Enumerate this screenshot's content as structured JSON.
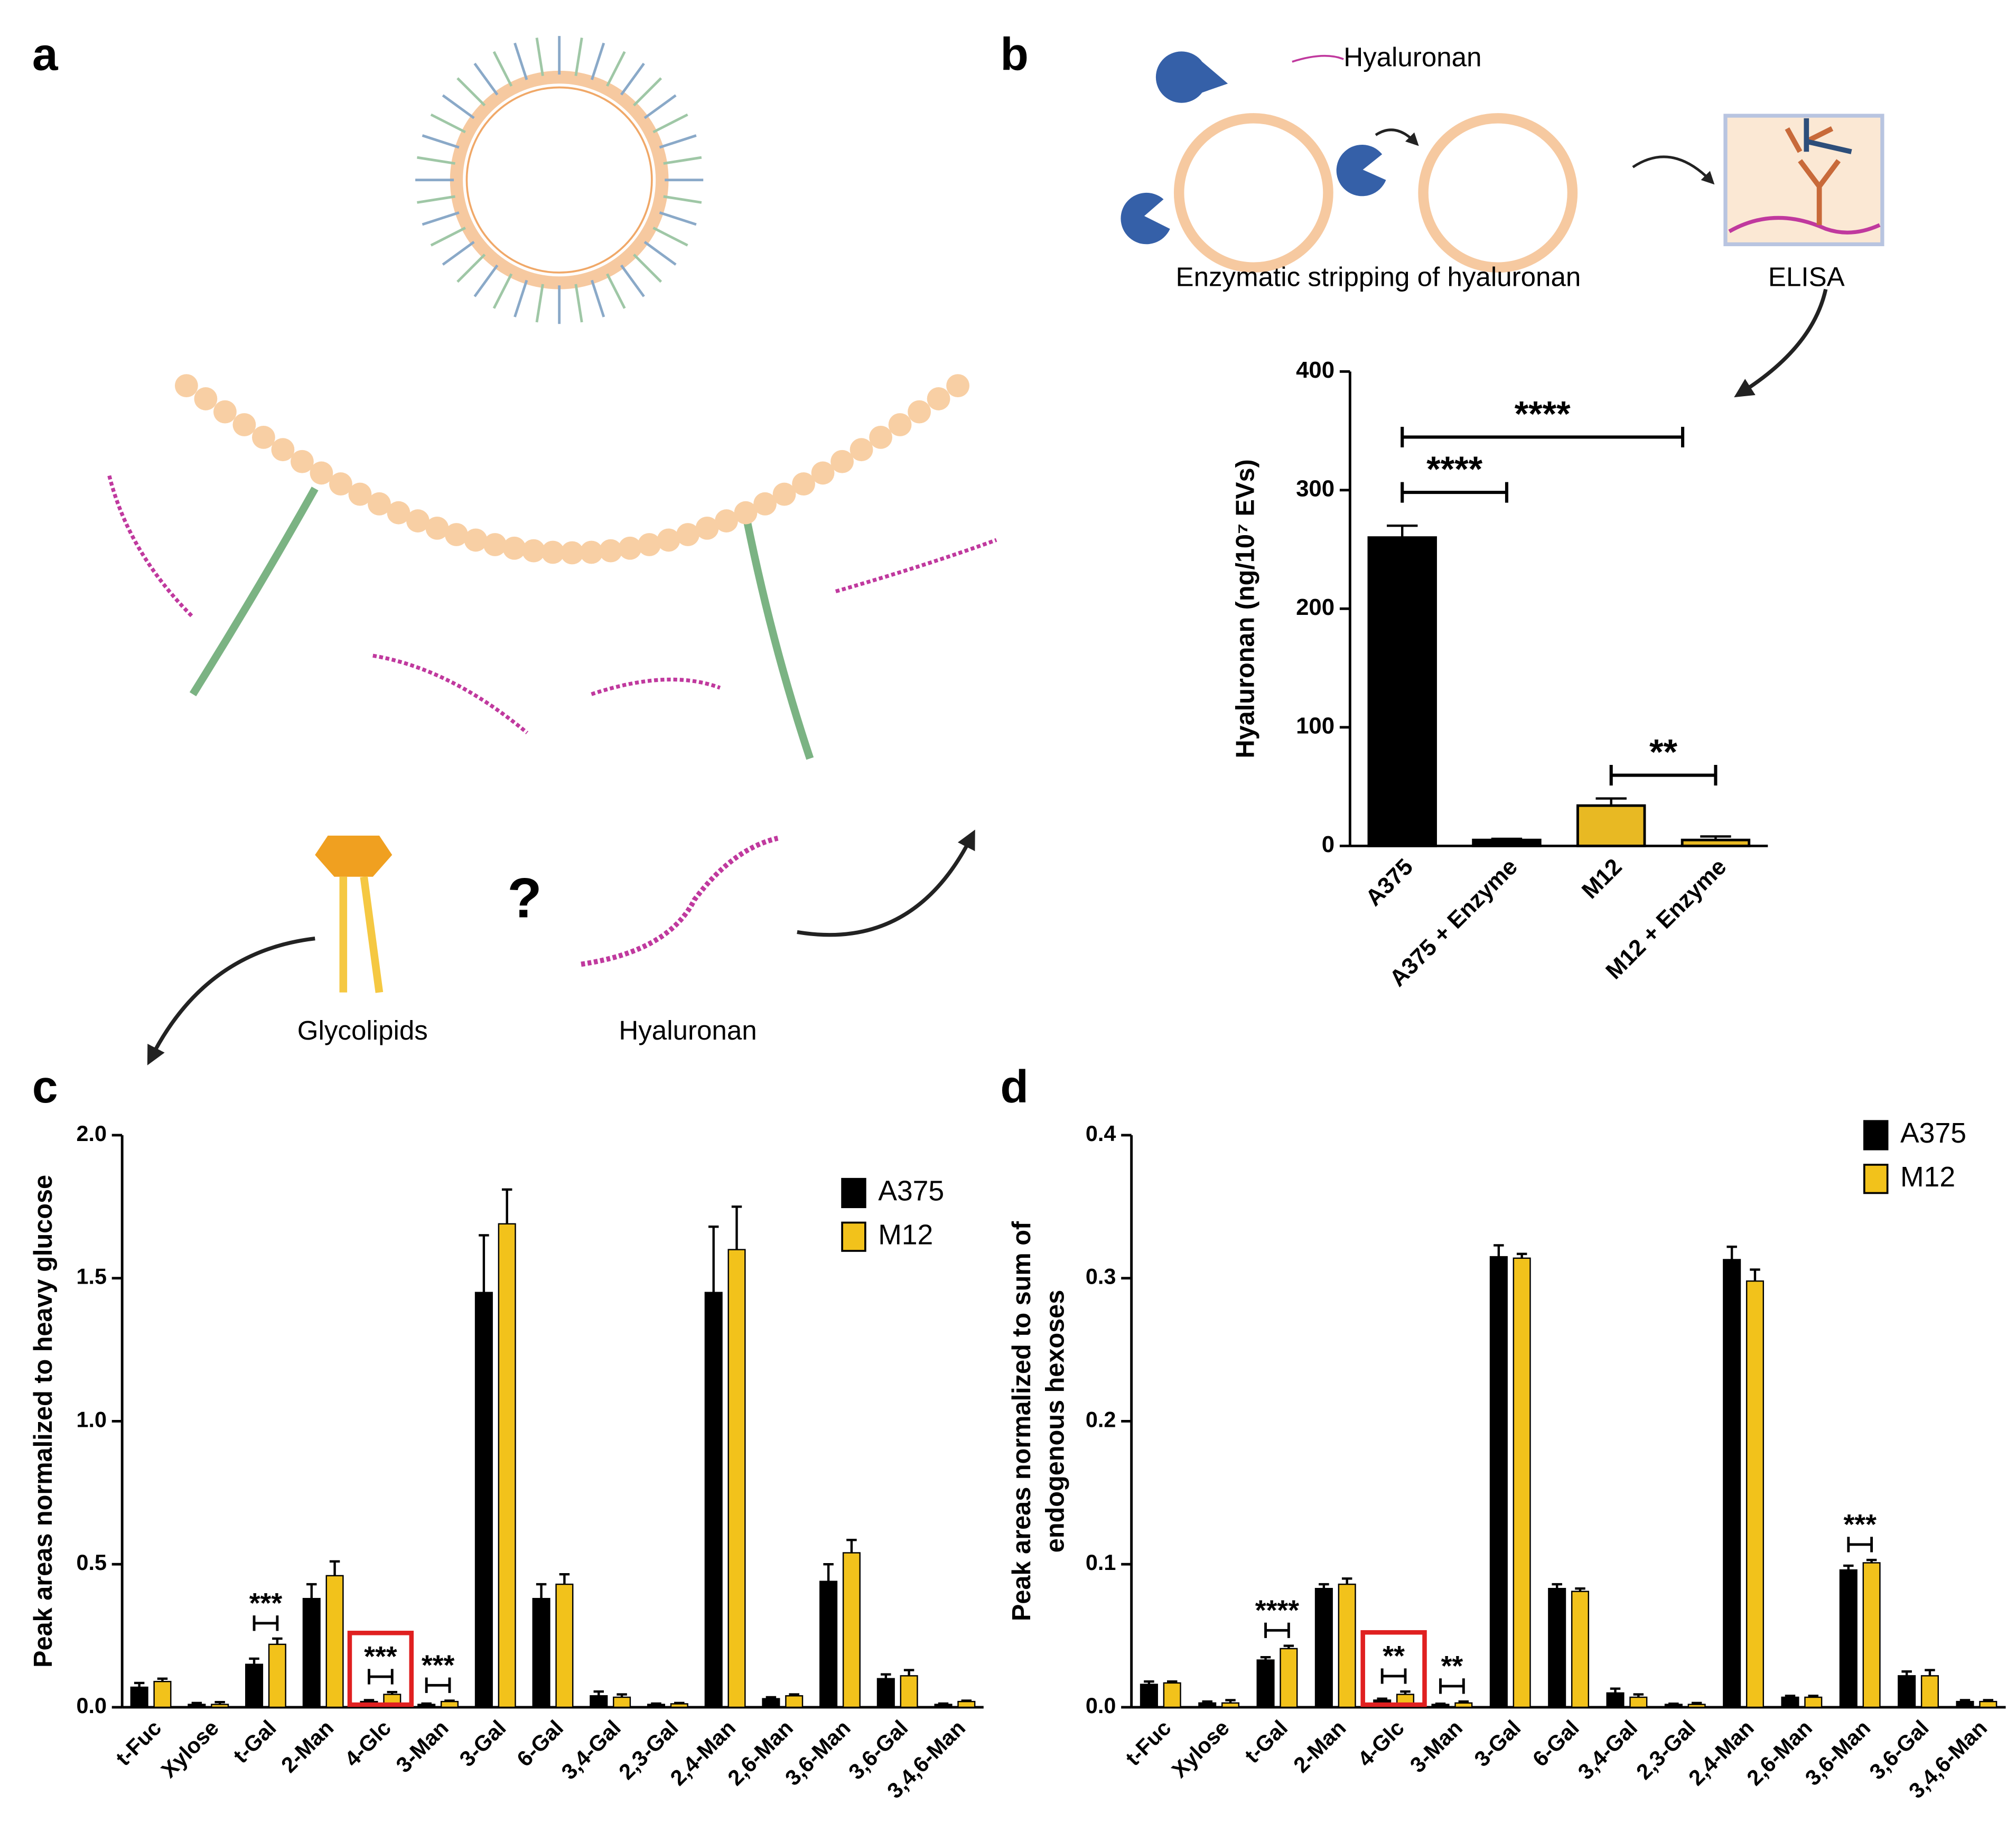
{
  "labels": {
    "panel_a": "a",
    "panel_b": "b",
    "panel_c": "c",
    "panel_d": "d",
    "hyaluronan_top": "Hyaluronan",
    "stripping": "Enzymatic stripping of hyaluronan",
    "elisa": "ELISA",
    "question": "?",
    "glycolipids": "Glycolipids",
    "hyaluronan_bottom": "Hyaluronan"
  },
  "chart_data": [
    {
      "type": "bar",
      "ylabel": "Hyaluronan (ng/10⁷ EVs)",
      "categories": [
        "A375",
        "A375 + Enzyme",
        "M12",
        "M12 + Enzyme"
      ],
      "values": [
        260,
        5,
        34,
        5
      ],
      "errors": [
        10,
        1,
        6,
        3
      ],
      "colors": [
        "#000000",
        "#000000",
        "#e8b923",
        "#e8b923"
      ],
      "ylim": [
        0,
        400
      ],
      "yticks": [
        0,
        100,
        200,
        300,
        400
      ],
      "annotations": [
        "****",
        "****",
        "**"
      ]
    },
    {
      "type": "grouped_bar",
      "ylabel": "Peak areas normalized to heavy glucose",
      "categories": [
        "t-Fuc",
        "Xylose",
        "t-Gal",
        "2-Man",
        "4-Glc",
        "3-Man",
        "3-Gal",
        "6-Gal",
        "3,4-Gal",
        "2,3-Gal",
        "2,4-Man",
        "2,6-Man",
        "3,6-Man",
        "3,6-Gal",
        "3,4,6-Man"
      ],
      "series": [
        {
          "name": "A375",
          "color": "#000000",
          "values": [
            0.07,
            0.01,
            0.15,
            0.38,
            0.02,
            0.01,
            1.45,
            0.38,
            0.04,
            0.01,
            1.45,
            0.03,
            0.44,
            0.1,
            0.01
          ],
          "errors": [
            0.015,
            0.005,
            0.02,
            0.05,
            0.005,
            0.003,
            0.2,
            0.05,
            0.015,
            0.003,
            0.23,
            0.005,
            0.06,
            0.015,
            0.003
          ]
        },
        {
          "name": "M12",
          "color": "#f2c21b",
          "values": [
            0.09,
            0.01,
            0.22,
            0.46,
            0.045,
            0.02,
            1.69,
            0.43,
            0.035,
            0.012,
            1.6,
            0.04,
            0.54,
            0.11,
            0.02
          ],
          "errors": [
            0.01,
            0.008,
            0.02,
            0.05,
            0.008,
            0.003,
            0.12,
            0.035,
            0.01,
            0.003,
            0.15,
            0.005,
            0.045,
            0.02,
            0.003
          ]
        }
      ],
      "ylim": [
        0,
        2
      ],
      "yticks": [
        {
          "value": 0,
          "label": "0.0"
        },
        {
          "value": 0.5,
          "label": "0.5"
        },
        {
          "value": 1,
          "label": "1.0"
        },
        {
          "value": 1.5,
          "label": "1.5"
        },
        {
          "value": 2,
          "label": "2.0"
        }
      ],
      "annotations": [
        "***",
        "***",
        "***"
      ],
      "legend": "upper right"
    },
    {
      "type": "grouped_bar",
      "ylabel": [
        "Peak areas normalized to sum of",
        "endogenous hexoses"
      ],
      "categories": [
        "t-Fuc",
        "Xylose",
        "t-Gal",
        "2-Man",
        "4-Glc",
        "3-Man",
        "3-Gal",
        "6-Gal",
        "3,4-Gal",
        "2,3-Gal",
        "2,4-Man",
        "2,6-Man",
        "3,6-Man",
        "3,6-Gal",
        "3,4,6-Man"
      ],
      "series": [
        {
          "name": "A375",
          "color": "#000000",
          "values": [
            0.016,
            0.003,
            0.033,
            0.083,
            0.005,
            0.002,
            0.315,
            0.083,
            0.01,
            0.002,
            0.313,
            0.007,
            0.096,
            0.022,
            0.004
          ],
          "errors": [
            0.002,
            0.001,
            0.002,
            0.003,
            0.001,
            0.0005,
            0.008,
            0.003,
            0.003,
            0.0005,
            0.009,
            0.001,
            0.003,
            0.003,
            0.001
          ]
        },
        {
          "name": "M12",
          "color": "#f2c21b",
          "values": [
            0.017,
            0.003,
            0.041,
            0.086,
            0.009,
            0.003,
            0.314,
            0.081,
            0.007,
            0.002,
            0.298,
            0.007,
            0.101,
            0.022,
            0.004
          ],
          "errors": [
            0.001,
            0.002,
            0.002,
            0.004,
            0.002,
            0.001,
            0.003,
            0.002,
            0.002,
            0.001,
            0.008,
            0.001,
            0.002,
            0.004,
            0.001
          ]
        }
      ],
      "ylim": [
        0,
        0.4
      ],
      "yticks": [
        {
          "value": 0,
          "label": "0.0"
        },
        {
          "value": 0.1,
          "label": "0.1"
        },
        {
          "value": 0.2,
          "label": "0.2"
        },
        {
          "value": 0.3,
          "label": "0.3"
        },
        {
          "value": 0.4,
          "label": "0.4"
        }
      ],
      "annotations": [
        "****",
        "**",
        "**",
        "***"
      ],
      "legend": "upper right"
    }
  ]
}
